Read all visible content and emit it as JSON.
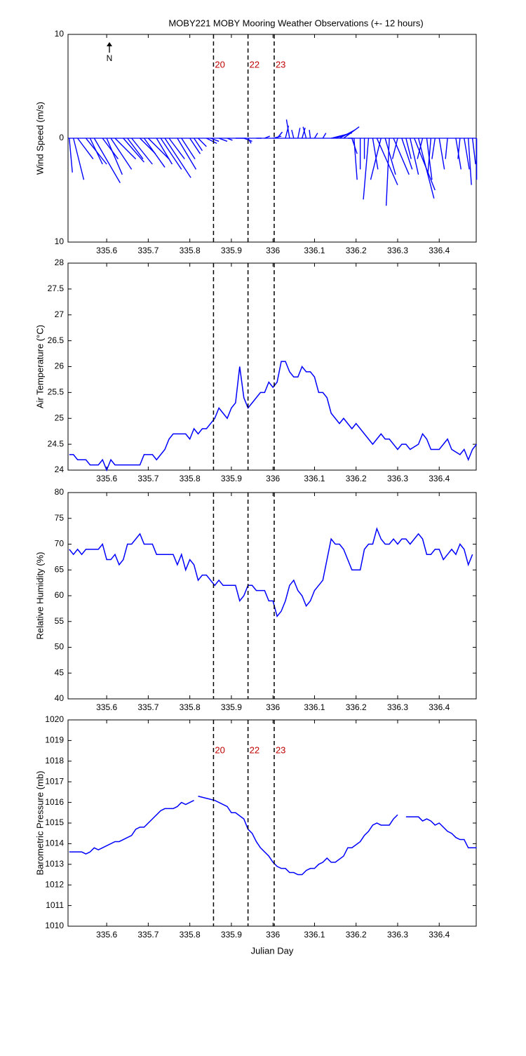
{
  "chart_data": [
    {
      "type": "stick",
      "title": "MOBY221 MOBY Mooring Weather Observations (+- 12 hours)",
      "ylabel": "Wind Speed (m/s)",
      "color": "#0000ff",
      "north_label": "N",
      "xlim": [
        335.507,
        336.489
      ],
      "xticks": [
        335.6,
        335.7,
        335.8,
        335.9,
        336,
        336.1,
        336.2,
        336.3,
        336.4
      ],
      "ylim": [
        -10,
        10
      ],
      "yticks": [
        {
          "value": -10,
          "label": "10"
        },
        0,
        10
      ],
      "vlines": [
        335.857,
        335.94,
        336.003
      ],
      "vline_labels": [
        "20",
        "22",
        "23"
      ],
      "x": [
        335.51,
        335.52,
        335.53,
        335.55,
        335.56,
        335.57,
        335.59,
        335.6,
        335.61,
        335.62,
        335.64,
        335.65,
        335.66,
        335.68,
        335.69,
        335.7,
        335.72,
        335.73,
        335.74,
        335.75,
        335.77,
        335.78,
        335.8,
        335.81,
        335.82,
        335.84,
        335.85,
        335.87,
        335.89,
        335.91,
        335.93,
        335.94,
        335.96,
        335.98,
        336.0,
        336.01,
        336.03,
        336.04,
        336.05,
        336.06,
        336.07,
        336.08,
        336.09,
        336.1,
        336.12,
        336.14,
        336.15,
        336.16,
        336.17,
        336.18,
        336.19,
        336.195,
        336.21,
        336.22,
        336.23,
        336.24,
        336.25,
        336.26,
        336.27,
        336.28,
        336.29,
        336.3,
        336.31,
        336.32,
        336.33,
        336.34,
        336.35,
        336.36,
        336.37,
        336.38,
        336.39,
        336.4,
        336.42,
        336.44,
        336.45,
        336.46,
        336.47,
        336.48,
        336.49
      ],
      "u": [
        0.3,
        1.0,
        1.5,
        2.0,
        1.2,
        2.5,
        1.5,
        1.5,
        2.0,
        2.0,
        2.0,
        1.5,
        2.0,
        1.5,
        2.0,
        2.0,
        1.5,
        2.0,
        2.5,
        1.5,
        1.8,
        1.3,
        1.0,
        0.8,
        0.8,
        1.0,
        0.8,
        0.8,
        0.5,
        1.0,
        0.8,
        0.3,
        0.5,
        0.5,
        0.8,
        0.5,
        0.3,
        -0.3,
        -0.2,
        0.2,
        0.3,
        -0.3,
        -0.1,
        0.3,
        0.3,
        2.0,
        1.5,
        1.5,
        1.5,
        0.5,
        0.5,
        0.3,
        0.0,
        0.0,
        -0.5,
        0.5,
        2.0,
        -1.0,
        1.0,
        -0.3,
        1.5,
        -0.5,
        1.0,
        0.5,
        0.8,
        2.0,
        1.5,
        -0.5,
        0.5,
        -0.3,
        -0.3,
        0.5,
        -0.2,
        0.5,
        -0.2,
        0.5,
        0.3,
        0.3,
        0.0
      ],
      "v": [
        -3.3,
        -4.0,
        -2.0,
        -2.5,
        -2.5,
        -4.3,
        -2.0,
        -3.5,
        -3.0,
        -2.0,
        -2.3,
        -2.0,
        -2.5,
        -1.5,
        -2.8,
        -2.0,
        -2.5,
        -3.0,
        -3.8,
        -2.0,
        -3.0,
        -2.0,
        -1.5,
        -1.2,
        -0.8,
        -0.5,
        -0.3,
        -0.3,
        -0.2,
        0.0,
        -0.3,
        -0.5,
        0.0,
        0.2,
        0.2,
        0.6,
        1.2,
        1.8,
        0.8,
        1.0,
        1.0,
        1.1,
        0.8,
        0.5,
        0.5,
        0.5,
        0.5,
        0.8,
        1.1,
        0.0,
        -1.5,
        -4.0,
        -3.0,
        -2.0,
        -5.9,
        -3.0,
        -4.5,
        -4.0,
        -3.5,
        -6.5,
        -3.5,
        -2.0,
        -3.0,
        -2.0,
        -3.5,
        -5.0,
        -5.8,
        -2.0,
        -4.0,
        -3.5,
        -2.0,
        -3.0,
        -2.0,
        -3.0,
        -2.0,
        -3.0,
        -4.5,
        -2.5,
        -4.0
      ]
    },
    {
      "type": "line",
      "ylabel": "Air Temperature (°C)",
      "color": "#0000ff",
      "xlim": [
        335.507,
        336.489
      ],
      "xticks": [
        335.6,
        335.7,
        335.8,
        335.9,
        336,
        336.1,
        336.2,
        336.3,
        336.4
      ],
      "ylim": [
        24,
        28
      ],
      "yticks": [
        24,
        24.5,
        25,
        25.5,
        26,
        26.5,
        27,
        27.5,
        28
      ],
      "vlines": [
        335.857,
        335.94,
        336.003
      ],
      "x": [
        335.51,
        335.52,
        335.53,
        335.55,
        335.56,
        335.58,
        335.59,
        335.6,
        335.61,
        335.62,
        335.64,
        335.66,
        335.68,
        335.69,
        335.71,
        335.72,
        335.74,
        335.75,
        335.76,
        335.79,
        335.8,
        335.81,
        335.82,
        335.83,
        335.84,
        335.86,
        335.87,
        335.89,
        335.9,
        335.91,
        335.92,
        335.93,
        335.94,
        335.95,
        335.97,
        335.98,
        335.99,
        336.0,
        336.01,
        336.02,
        336.03,
        336.04,
        336.05,
        336.06,
        336.07,
        336.08,
        336.09,
        336.1,
        336.11,
        336.12,
        336.13,
        336.14,
        336.16,
        336.17,
        336.19,
        336.2,
        336.22,
        336.24,
        336.26,
        336.27,
        336.28,
        336.3,
        336.31,
        336.32,
        336.33,
        336.35,
        336.36,
        336.37,
        336.38,
        336.4,
        336.41,
        336.42,
        336.43,
        336.45,
        336.46,
        336.47,
        336.48,
        336.49
      ],
      "values": [
        24.3,
        24.3,
        24.2,
        24.2,
        24.1,
        24.1,
        24.2,
        24.0,
        24.2,
        24.1,
        24.1,
        24.1,
        24.1,
        24.3,
        24.3,
        24.2,
        24.4,
        24.6,
        24.7,
        24.7,
        24.6,
        24.8,
        24.7,
        24.8,
        24.8,
        25.0,
        25.2,
        25.0,
        25.2,
        25.3,
        26.0,
        25.4,
        25.2,
        25.3,
        25.5,
        25.5,
        25.7,
        25.6,
        25.7,
        26.1,
        26.1,
        25.9,
        25.8,
        25.8,
        26.0,
        25.9,
        25.9,
        25.8,
        25.5,
        25.5,
        25.4,
        25.1,
        24.9,
        25.0,
        24.8,
        24.9,
        24.7,
        24.5,
        24.7,
        24.6,
        24.6,
        24.4,
        24.5,
        24.5,
        24.4,
        24.5,
        24.7,
        24.6,
        24.4,
        24.4,
        24.5,
        24.6,
        24.4,
        24.3,
        24.4,
        24.2,
        24.4,
        24.5
      ]
    },
    {
      "type": "line",
      "ylabel": "Relative Humidity (%)",
      "color": "#0000ff",
      "xlim": [
        335.507,
        336.489
      ],
      "xticks": [
        335.6,
        335.7,
        335.8,
        335.9,
        336,
        336.1,
        336.2,
        336.3,
        336.4
      ],
      "ylim": [
        40,
        80
      ],
      "yticks": [
        40,
        45,
        50,
        55,
        60,
        65,
        70,
        75,
        80
      ],
      "vlines": [
        335.857,
        335.94,
        336.003
      ],
      "x": [
        335.51,
        335.52,
        335.53,
        335.54,
        335.55,
        335.57,
        335.58,
        335.59,
        335.6,
        335.61,
        335.62,
        335.63,
        335.64,
        335.65,
        335.66,
        335.68,
        335.69,
        335.71,
        335.72,
        335.75,
        335.76,
        335.77,
        335.78,
        335.79,
        335.8,
        335.81,
        335.82,
        335.83,
        335.84,
        335.86,
        335.87,
        335.88,
        335.91,
        335.92,
        335.93,
        335.94,
        335.95,
        335.96,
        335.98,
        335.99,
        336.0,
        336.01,
        336.02,
        336.03,
        336.04,
        336.05,
        336.06,
        336.07,
        336.08,
        336.09,
        336.1,
        336.11,
        336.12,
        336.14,
        336.15,
        336.16,
        336.17,
        336.19,
        336.21,
        336.22,
        336.23,
        336.24,
        336.25,
        336.26,
        336.27,
        336.28,
        336.29,
        336.3,
        336.31,
        336.32,
        336.33,
        336.35,
        336.36,
        336.37,
        336.38,
        336.39,
        336.4,
        336.41,
        336.42,
        336.43,
        336.44,
        336.45,
        336.46,
        336.47,
        336.48
      ],
      "values": [
        69,
        68,
        69,
        68,
        69,
        69,
        69,
        70,
        67,
        67,
        68,
        66,
        67,
        70,
        70,
        72,
        70,
        70,
        68,
        68,
        68,
        66,
        68,
        65,
        67,
        66,
        63,
        64,
        64,
        62,
        63,
        62,
        62,
        59,
        60,
        62,
        62,
        61,
        61,
        59,
        59,
        56,
        57,
        59,
        62,
        63,
        61,
        60,
        58,
        59,
        61,
        62,
        63,
        71,
        70,
        70,
        69,
        65,
        65,
        69,
        70,
        70,
        73,
        71,
        70,
        70,
        71,
        70,
        71,
        71,
        70,
        72,
        71,
        68,
        68,
        69,
        69,
        67,
        68,
        69,
        68,
        70,
        69,
        66,
        68
      ]
    },
    {
      "type": "line",
      "ylabel": "Barometric Pressure (mb)",
      "xlabel": "Julian Day",
      "color": "#0000ff",
      "xlim": [
        335.507,
        336.489
      ],
      "xticks": [
        335.6,
        335.7,
        335.8,
        335.9,
        336,
        336.1,
        336.2,
        336.3,
        336.4
      ],
      "ylim": [
        1010,
        1020
      ],
      "yticks": [
        1010,
        1011,
        1012,
        1013,
        1014,
        1015,
        1016,
        1017,
        1018,
        1019,
        1020
      ],
      "vlines": [
        335.857,
        335.94,
        336.003
      ],
      "vline_labels": [
        "20",
        "22",
        "23"
      ],
      "x": [
        335.51,
        335.54,
        335.55,
        335.56,
        335.57,
        335.58,
        335.6,
        335.62,
        335.63,
        335.66,
        335.67,
        335.68,
        335.69,
        335.71,
        335.73,
        335.74,
        335.76,
        335.77,
        335.78,
        335.79,
        335.81,
        335.815,
        335.82,
        335.84,
        335.86,
        335.88,
        335.89,
        335.9,
        335.91,
        335.93,
        335.94,
        335.95,
        335.96,
        335.97,
        335.99,
        336.0,
        336.01,
        336.02,
        336.03,
        336.04,
        336.05,
        336.06,
        336.07,
        336.08,
        336.09,
        336.1,
        336.11,
        336.12,
        336.13,
        336.14,
        336.15,
        336.17,
        336.18,
        336.19,
        336.21,
        336.22,
        336.23,
        336.24,
        336.25,
        336.26,
        336.28,
        336.29,
        336.3,
        336.31,
        336.32,
        336.35,
        336.36,
        336.37,
        336.38,
        336.39,
        336.4,
        336.42,
        336.43,
        336.44,
        336.45,
        336.46,
        336.47,
        336.49
      ],
      "values": [
        1013.6,
        1013.6,
        1013.5,
        1013.6,
        1013.8,
        1013.7,
        1013.9,
        1014.1,
        1014.1,
        1014.4,
        1014.7,
        1014.8,
        1014.8,
        1015.2,
        1015.6,
        1015.7,
        1015.7,
        1015.8,
        1016.0,
        1015.9,
        1016.1,
        null,
        1016.3,
        1016.2,
        1016.1,
        1015.9,
        1015.8,
        1015.5,
        1015.5,
        1015.2,
        1014.7,
        1014.5,
        1014.1,
        1013.8,
        1013.4,
        1013.1,
        1012.9,
        1012.8,
        1012.8,
        1012.6,
        1012.6,
        1012.5,
        1012.5,
        1012.7,
        1012.8,
        1012.8,
        1013.0,
        1013.1,
        1013.3,
        1013.1,
        1013.1,
        1013.4,
        1013.8,
        1013.8,
        1014.1,
        1014.4,
        1014.6,
        1014.9,
        1015.0,
        1014.9,
        1014.9,
        1015.2,
        1015.4,
        null,
        1015.3,
        1015.3,
        1015.1,
        1015.2,
        1015.1,
        1014.9,
        1015.0,
        1014.6,
        1014.5,
        1014.3,
        1014.2,
        1014.2,
        1013.8,
        1013.8
      ]
    }
  ]
}
